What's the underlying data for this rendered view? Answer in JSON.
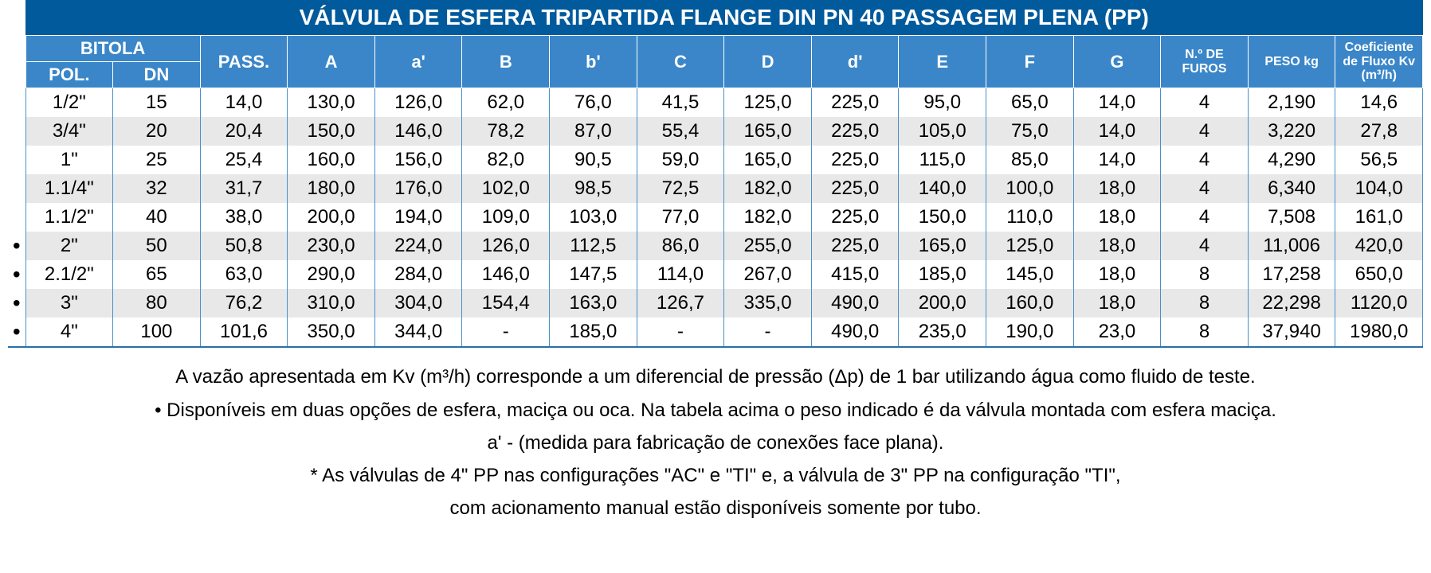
{
  "table": {
    "title": "VÁLVULA DE ESFERA TRIPARTIDA FLANGE DIN PN 40 PASSAGEM PLENA (PP)",
    "colors": {
      "title_bg": "#005a9c",
      "header_bg": "#3a86c8",
      "header_fg": "#ffffff",
      "row_even_bg": "#e8e8e8",
      "row_odd_bg": "#ffffff",
      "border": "#4a8fc7",
      "text": "#000000"
    },
    "columns": {
      "bitola": "BITOLA",
      "pol": "POL.",
      "dn": "DN",
      "pass": "PASS.",
      "A": "A",
      "a_prime": "a'",
      "B": "B",
      "b_prime": "b'",
      "C": "C",
      "D": "D",
      "d_prime": "d'",
      "E": "E",
      "F": "F",
      "G": "G",
      "furos": "N.º DE FUROS",
      "peso": "PESO kg",
      "coef": "Coeficiente de Fluxo Kv (m³/h)"
    },
    "rows": [
      {
        "bullet": "",
        "pol": "1/2\"",
        "dn": "15",
        "pass": "14,0",
        "A": "130,0",
        "ap": "126,0",
        "B": "62,0",
        "bp": "76,0",
        "C": "41,5",
        "D": "125,0",
        "dp": "225,0",
        "E": "95,0",
        "F": "65,0",
        "G": "14,0",
        "furos": "4",
        "peso": "2,190",
        "kv": "14,6"
      },
      {
        "bullet": "",
        "pol": "3/4\"",
        "dn": "20",
        "pass": "20,4",
        "A": "150,0",
        "ap": "146,0",
        "B": "78,2",
        "bp": "87,0",
        "C": "55,4",
        "D": "165,0",
        "dp": "225,0",
        "E": "105,0",
        "F": "75,0",
        "G": "14,0",
        "furos": "4",
        "peso": "3,220",
        "kv": "27,8"
      },
      {
        "bullet": "",
        "pol": "1\"",
        "dn": "25",
        "pass": "25,4",
        "A": "160,0",
        "ap": "156,0",
        "B": "82,0",
        "bp": "90,5",
        "C": "59,0",
        "D": "165,0",
        "dp": "225,0",
        "E": "115,0",
        "F": "85,0",
        "G": "14,0",
        "furos": "4",
        "peso": "4,290",
        "kv": "56,5"
      },
      {
        "bullet": "",
        "pol": "1.1/4\"",
        "dn": "32",
        "pass": "31,7",
        "A": "180,0",
        "ap": "176,0",
        "B": "102,0",
        "bp": "98,5",
        "C": "72,5",
        "D": "182,0",
        "dp": "225,0",
        "E": "140,0",
        "F": "100,0",
        "G": "18,0",
        "furos": "4",
        "peso": "6,340",
        "kv": "104,0"
      },
      {
        "bullet": "",
        "pol": "1.1/2\"",
        "dn": "40",
        "pass": "38,0",
        "A": "200,0",
        "ap": "194,0",
        "B": "109,0",
        "bp": "103,0",
        "C": "77,0",
        "D": "182,0",
        "dp": "225,0",
        "E": "150,0",
        "F": "110,0",
        "G": "18,0",
        "furos": "4",
        "peso": "7,508",
        "kv": "161,0"
      },
      {
        "bullet": "•",
        "pol": "2\"",
        "dn": "50",
        "pass": "50,8",
        "A": "230,0",
        "ap": "224,0",
        "B": "126,0",
        "bp": "112,5",
        "C": "86,0",
        "D": "255,0",
        "dp": "225,0",
        "E": "165,0",
        "F": "125,0",
        "G": "18,0",
        "furos": "4",
        "peso": "11,006",
        "kv": "420,0"
      },
      {
        "bullet": "•",
        "pol": "2.1/2\"",
        "dn": "65",
        "pass": "63,0",
        "A": "290,0",
        "ap": "284,0",
        "B": "146,0",
        "bp": "147,5",
        "C": "114,0",
        "D": "267,0",
        "dp": "415,0",
        "E": "185,0",
        "F": "145,0",
        "G": "18,0",
        "furos": "8",
        "peso": "17,258",
        "kv": "650,0"
      },
      {
        "bullet": "•",
        "pol": "3\"",
        "dn": "80",
        "pass": "76,2",
        "A": "310,0",
        "ap": "304,0",
        "B": "154,4",
        "bp": "163,0",
        "C": "126,7",
        "D": "335,0",
        "dp": "490,0",
        "E": "200,0",
        "F": "160,0",
        "G": "18,0",
        "furos": "8",
        "peso": "22,298",
        "kv": "1120,0"
      },
      {
        "bullet": "•",
        "pol": "4\"",
        "dn": "100",
        "pass": "101,6",
        "A": "350,0",
        "ap": "344,0",
        "B": "-",
        "bp": "185,0",
        "C": "-",
        "D": "-",
        "dp": "490,0",
        "E": "235,0",
        "F": "190,0",
        "G": "23,0",
        "furos": "8",
        "peso": "37,940",
        "kv": "1980,0"
      }
    ]
  },
  "notes": {
    "n1": "A vazão apresentada em Kv (m³/h) corresponde a um diferencial de pressão (Δp) de 1 bar utilizando água como fluido de teste.",
    "n2": "• Disponíveis em duas opções de esfera, maciça ou oca. Na tabela acima o peso indicado é da válvula montada com esfera maciça.",
    "n3": "a' - (medida para fabricação de conexões face plana).",
    "n4": "* As válvulas de 4\" PP nas configurações \"AC\" e \"TI\" e, a válvula de 3\" PP na configuração \"TI\",",
    "n5": "com acionamento manual estão disponíveis somente por tubo."
  }
}
